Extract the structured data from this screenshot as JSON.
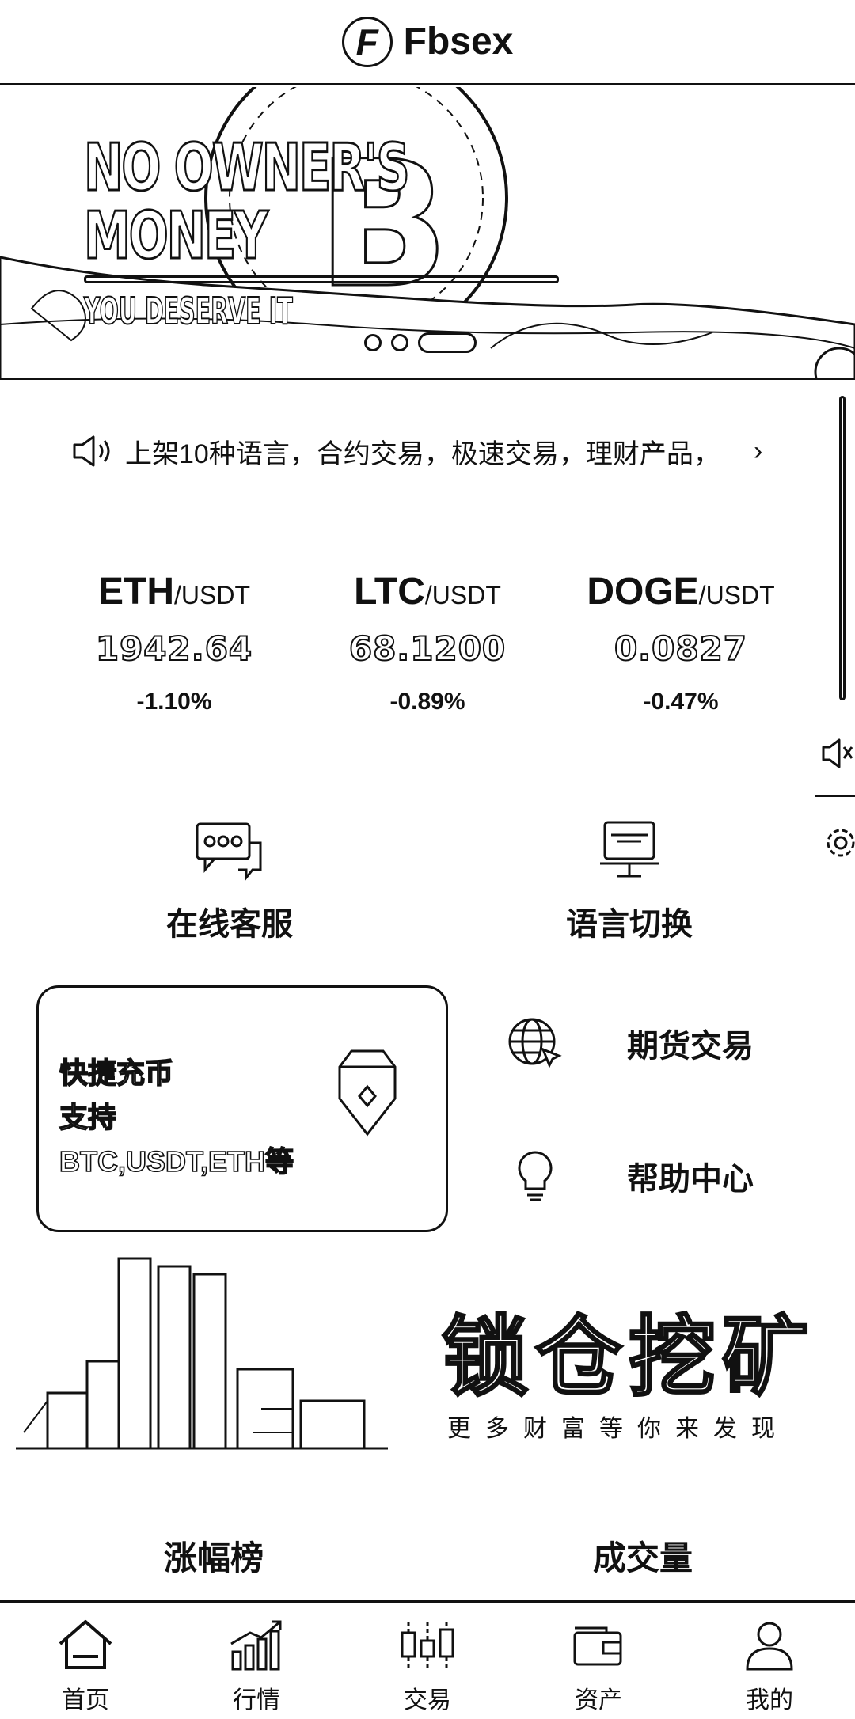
{
  "header": {
    "logo_glyph": "F",
    "brand": "Fbsex"
  },
  "banner": {
    "title_line1": "NO OWNER'S",
    "title_line2": "MONEY",
    "subtitle": "YOU DESERVE IT",
    "slide_count": 3,
    "active_slide": 3
  },
  "notice": {
    "icon": "speaker-icon",
    "text": "上架10种语言，合约交易，极速交易，理财产品，",
    "arrow": "›"
  },
  "tickers": [
    {
      "base": "ETH",
      "quote": "/USDT",
      "price": "1942.64",
      "change": "-1.10%"
    },
    {
      "base": "LTC",
      "quote": "/USDT",
      "price": "68.1200",
      "change": "-0.89%"
    },
    {
      "base": "DOGE",
      "quote": "/USDT",
      "price": "0.0827",
      "change": "-0.47%"
    }
  ],
  "quick_links": {
    "support": {
      "label": "在线客服",
      "icon": "chat-bubbles-icon"
    },
    "language": {
      "label": "语言切换",
      "icon": "monitor-icon"
    }
  },
  "recharge": {
    "title": "快捷充币",
    "line2": "支持",
    "line3": "BTC,USDT,ETH等",
    "icon": "diamond-gem-icon"
  },
  "menu": {
    "futures": {
      "label": "期货交易",
      "icon": "globe-cursor-icon"
    },
    "help": {
      "label": "帮助中心",
      "icon": "lightbulb-icon"
    }
  },
  "mining": {
    "title": "锁仓挖矿",
    "subtitle": "更多财富等你来发现"
  },
  "rank_tabs": {
    "gainers": "涨幅榜",
    "volume": "成交量"
  },
  "tabbar": [
    {
      "label": "首页",
      "icon": "home-icon",
      "active": true
    },
    {
      "label": "行情",
      "icon": "market-chart-icon",
      "active": false
    },
    {
      "label": "交易",
      "icon": "candlestick-icon",
      "active": false
    },
    {
      "label": "资产",
      "icon": "wallet-icon",
      "active": false
    },
    {
      "label": "我的",
      "icon": "user-icon",
      "active": false
    }
  ]
}
